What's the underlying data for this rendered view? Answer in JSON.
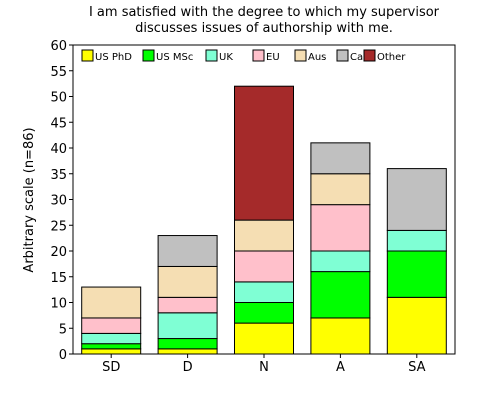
{
  "chart_data": {
    "type": "bar",
    "stacked": true,
    "title_lines": [
      "I am satisfied with the degree to which my supervisor",
      "discusses issues of authorship with me."
    ],
    "xlabel": "",
    "ylabel": "Arbitrary scale (n=86)",
    "ylim": [
      0,
      60
    ],
    "yticks": [
      0,
      5,
      10,
      15,
      20,
      25,
      30,
      35,
      40,
      45,
      50,
      55,
      60
    ],
    "grid": false,
    "legend_placement": "top",
    "categories": [
      "SD",
      "D",
      "N",
      "A",
      "SA"
    ],
    "series": [
      {
        "name": "US PhD",
        "color": "#ffff00",
        "values": [
          1,
          1,
          6,
          7,
          11
        ]
      },
      {
        "name": "US MSc",
        "color": "#00ff00",
        "values": [
          1,
          2,
          4,
          9,
          9
        ]
      },
      {
        "name": "UK",
        "color": "#7fffd4",
        "values": [
          2,
          5,
          4,
          4,
          4
        ]
      },
      {
        "name": "EU",
        "color": "#ffc0cb",
        "values": [
          3,
          3,
          6,
          9,
          0
        ]
      },
      {
        "name": "Aus",
        "color": "#f5deb3",
        "values": [
          6,
          6,
          6,
          6,
          0
        ]
      },
      {
        "name": "Ca",
        "color": "#c0c0c0",
        "values": [
          0,
          6,
          0,
          6,
          12
        ]
      },
      {
        "name": "Other",
        "color": "#a52a2a",
        "values": [
          0,
          0,
          26,
          0,
          0
        ]
      }
    ]
  }
}
